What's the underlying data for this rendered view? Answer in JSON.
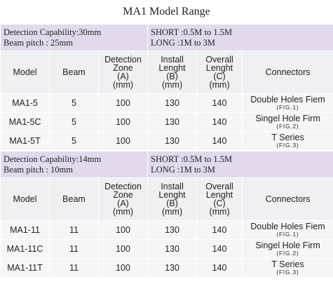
{
  "title": "MA1 Model Range",
  "columns": [
    [
      "Model"
    ],
    [
      "Beam"
    ],
    [
      "Detection",
      "Zone",
      "(A)",
      "(mm)"
    ],
    [
      "Install",
      "Lenght",
      "(B)",
      "(mm)"
    ],
    [
      "Overall",
      "Lenght",
      "(C)",
      "(mm)"
    ],
    [
      "Connectors"
    ]
  ],
  "sections": [
    {
      "capability": "Detection Capability:30mm",
      "pitch": "Beam pitch : 25mm",
      "short": "SHORT :0.5M to 1.5M",
      "long": "LONG :1M to 3M",
      "rows": [
        [
          "MA1-5",
          "5",
          "100",
          "130",
          "140",
          "Double Holes Fiem",
          "(FIG.1)"
        ],
        [
          "MA1-5C",
          "5",
          "100",
          "130",
          "140",
          "Singel Hole Firm",
          "(FIG.2)"
        ],
        [
          "MA1-5T",
          "5",
          "100",
          "130",
          "140",
          "T Series",
          "(FIG.3)"
        ]
      ]
    },
    {
      "capability": "Detection Capability:14mm",
      "pitch": "Beam pitch : 10mm",
      "short": "SHORT :0.5M to 1.5M",
      "long": "LONG :1M to 3M",
      "rows": [
        [
          "MA1-11",
          "11",
          "100",
          "130",
          "140",
          "Double Holes Fiem",
          "(FIG.1)"
        ],
        [
          "MA1-11C",
          "11",
          "100",
          "130",
          "140",
          "Singel Hole Firm",
          "(FIG.2)"
        ],
        [
          "MA1-11T",
          "11",
          "100",
          "130",
          "140",
          "T Series",
          "(FIG.3)"
        ]
      ]
    }
  ]
}
